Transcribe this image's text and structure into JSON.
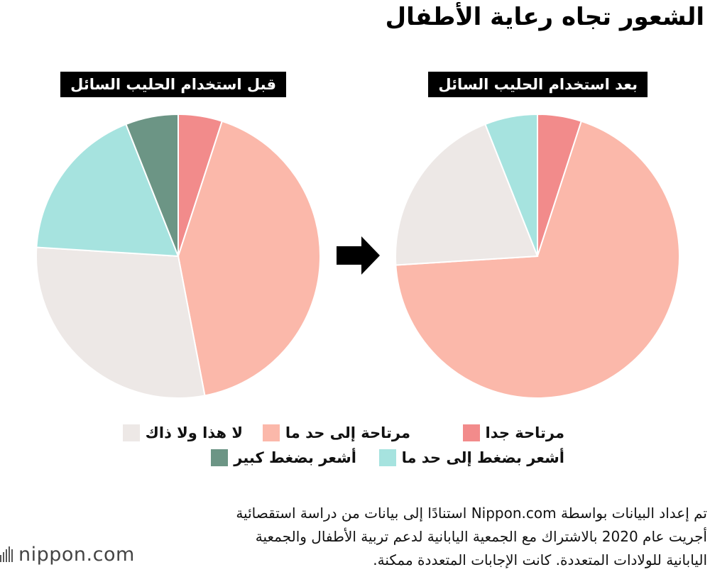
{
  "title": "الشعور تجاه رعاية الأطفال",
  "chart_data": [
    {
      "type": "pie",
      "title": "قبل استخدام الحليب السائل",
      "categories": [
        "مرتاحة جدا",
        "مرتاحة إلى حد ما",
        "لا هذا ولا ذاك",
        "أشعر بضغط إلى حد ما",
        "أشعر بضغط كبير"
      ],
      "values": [
        5,
        42,
        29,
        18,
        6
      ],
      "colors": [
        "#f28b8b",
        "#fbb8aa",
        "#ede8e6",
        "#a6e3df",
        "#6c9585"
      ]
    },
    {
      "type": "pie",
      "title": "بعد استخدام الحليب السائل",
      "categories": [
        "مرتاحة جدا",
        "مرتاحة إلى حد ما",
        "لا هذا ولا ذاك",
        "أشعر بضغط إلى حد ما",
        "أشعر بضغط كبير"
      ],
      "values": [
        5,
        69,
        20,
        6,
        0
      ],
      "colors": [
        "#f28b8b",
        "#fbb8aa",
        "#ede8e6",
        "#a6e3df",
        "#6c9585"
      ]
    }
  ],
  "legend": [
    {
      "label": "مرتاحة جدا",
      "color": "#f28b8b"
    },
    {
      "label": "مرتاحة إلى حد ما",
      "color": "#fbb8aa"
    },
    {
      "label": "لا هذا ولا ذاك",
      "color": "#ede8e6"
    },
    {
      "label": "أشعر بضغط إلى حد ما",
      "color": "#a6e3df"
    },
    {
      "label": "أشعر بضغط كبير",
      "color": "#6c9585"
    }
  ],
  "note": "تم إعداد البيانات بواسطة Nippon.com استنادًا إلى بيانات من دراسة استقصائية أجريت عام 2020 بالاشتراك مع الجمعية اليابانية لدعم تربية الأطفال والجمعية اليابانية للولادات المتعددة. كانت الإجابات المتعددة ممكنة.",
  "logo": {
    "text": "nippon.com",
    "icon": "nippon-bars-icon"
  }
}
